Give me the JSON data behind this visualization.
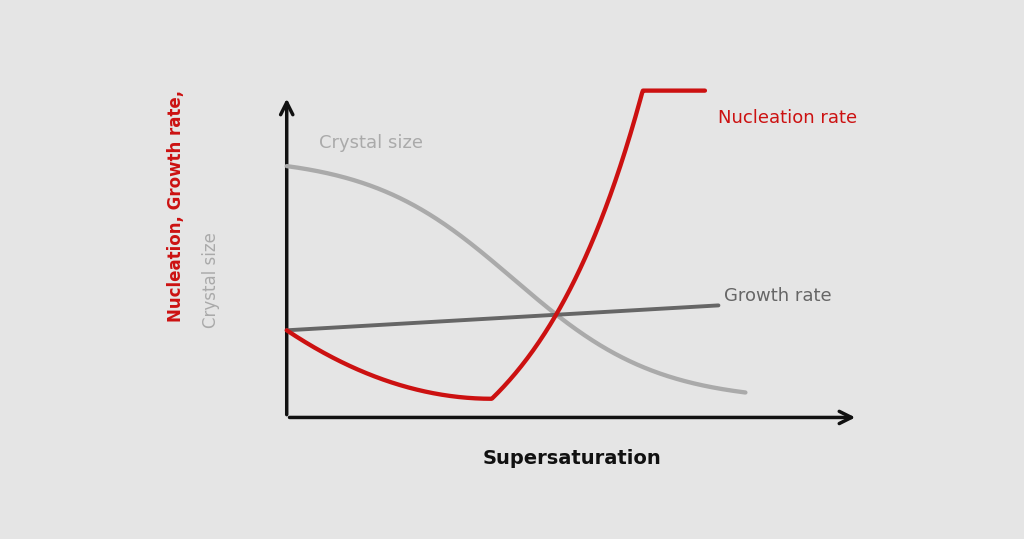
{
  "background_color": "#e5e5e5",
  "nucleation_color": "#cc1111",
  "crystal_color": "#aaaaaa",
  "growth_color": "#666666",
  "axis_color": "#111111",
  "xlabel": "Supersaturation",
  "ylabel_line1": "Nucleation, Growth rate,",
  "ylabel_line2": "Crystal size",
  "nucleation_label": "Nucleation rate",
  "crystal_label": "Crystal size",
  "growth_label": "Growth rate",
  "xlabel_fontsize": 14,
  "label_fontsize": 13,
  "ylabel_fontsize": 12,
  "linewidth_curve": 2.8,
  "linewidth_axis": 2.5
}
